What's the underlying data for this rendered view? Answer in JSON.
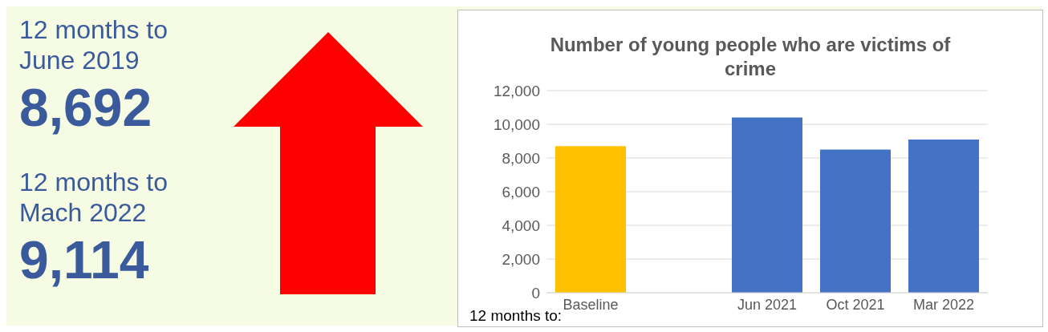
{
  "chart_data": [
    {
      "type": "other",
      "annotations": [
        "12 months to June 2019",
        "8,692",
        "12 months to Mach 2022",
        "9,114"
      ]
    },
    {
      "type": "bar",
      "title": "Number of young people who are victims of crime",
      "categories": [
        "Baseline",
        null,
        "Jun 2021",
        "Oct 2021",
        "Mar 2022"
      ],
      "values": [
        8700,
        null,
        10400,
        8500,
        9100
      ],
      "colors": [
        "#ffc000",
        "#4472c4",
        "#4472c4",
        "#4472c4",
        "#4472c4"
      ],
      "ylim": [
        0,
        12000
      ],
      "yticks": [
        0,
        {
          "value": 2000,
          "label": "2,000"
        },
        {
          "value": 4000,
          "label": "4,000"
        },
        {
          "value": 6000,
          "label": "6,000"
        },
        {
          "value": 8000,
          "label": "8,000"
        },
        {
          "value": 10000,
          "label": "10,000"
        },
        {
          "value": 12000,
          "label": "12,000"
        }
      ],
      "grid": "y",
      "legend": false,
      "annotations": [
        "12 months to:"
      ]
    }
  ]
}
